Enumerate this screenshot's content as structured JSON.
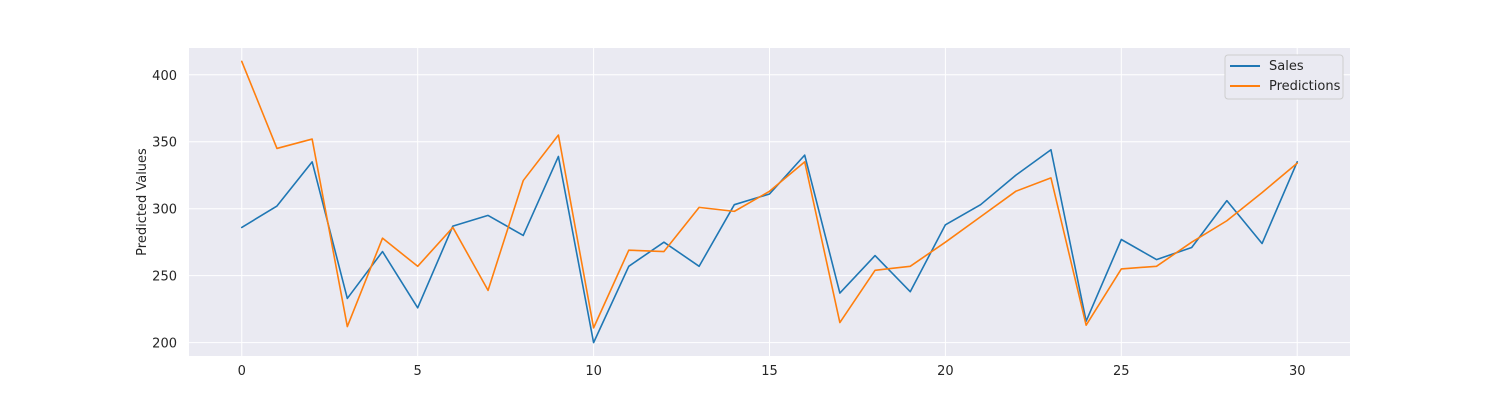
{
  "chart_data": {
    "type": "line",
    "title": "",
    "xlabel": "",
    "ylabel": "Predicted Values",
    "xlim": [
      -1.5,
      31.5
    ],
    "ylim": [
      190,
      420
    ],
    "xticks": [
      0,
      5,
      10,
      15,
      20,
      25,
      30
    ],
    "yticks": [
      200,
      250,
      300,
      350,
      400
    ],
    "grid": true,
    "legend_position": "top-right",
    "x": [
      0,
      1,
      2,
      3,
      4,
      5,
      6,
      7,
      8,
      9,
      10,
      11,
      12,
      13,
      14,
      15,
      16,
      17,
      18,
      19,
      20,
      21,
      22,
      23,
      24,
      25,
      26,
      27,
      28,
      29,
      30
    ],
    "series": [
      {
        "name": "Sales",
        "color": "#1f77b4",
        "values": [
          286,
          302,
          335,
          233,
          268,
          226,
          287,
          295,
          280,
          339,
          200,
          257,
          275,
          257,
          303,
          311,
          340,
          237,
          265,
          238,
          288,
          303,
          325,
          344,
          216,
          277,
          262,
          271,
          306,
          274,
          335
        ]
      },
      {
        "name": "Predictions",
        "color": "#ff7f0e",
        "values": [
          410,
          345,
          352,
          212,
          278,
          257,
          286,
          239,
          321,
          355,
          211,
          269,
          268,
          301,
          298,
          313,
          335,
          215,
          254,
          257,
          275,
          294,
          313,
          323,
          213,
          255,
          257,
          275,
          291,
          312,
          334
        ]
      }
    ]
  }
}
